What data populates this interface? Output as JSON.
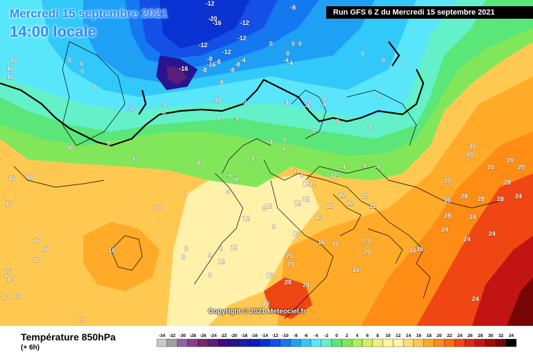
{
  "header": {
    "date_text": "Mercredi 15 septembre 2021",
    "time_text": "14:00 locale",
    "run_text": "Run GFS 6 Z du Mercredi 15 septembre 2021"
  },
  "footer": {
    "variable_title": "Température 850hPa",
    "lead_time": "(+ 6h)",
    "copyright": "Copyright © 2021 Meteociel.fr"
  },
  "legend": {
    "labels": [
      "-34",
      "-32",
      "-30",
      "-28",
      "-26",
      "-24",
      "-22",
      "-20",
      "-18",
      "-16",
      "-14",
      "-12",
      "-10",
      "-8",
      "-6",
      "-4",
      "-2",
      "0",
      "2",
      "4",
      "6",
      "8",
      "10",
      "12",
      "14",
      "16",
      "18",
      "20",
      "22",
      "24",
      "26",
      "28",
      "30",
      "32",
      "34"
    ],
    "colors": [
      "#c8c8c8",
      "#a0a0a0",
      "#8c64a0",
      "#8c3c8c",
      "#78286e",
      "#5a1e78",
      "#3c0a8c",
      "#28148c",
      "#1e1ea0",
      "#0a1eb4",
      "#0a32d2",
      "#1450e6",
      "#1478f0",
      "#1ea0f5",
      "#32c8fa",
      "#5ae6fa",
      "#64f0c8",
      "#5ae678",
      "#82e65a",
      "#aaf05a",
      "#d2f064",
      "#f0f082",
      "#fff596",
      "#fff0aa",
      "#ffdc78",
      "#ffc850",
      "#ffaa28",
      "#ff8c14",
      "#ff6e0a",
      "#f04614",
      "#dc2814",
      "#c31414",
      "#a00a0a",
      "#780505",
      "#000000"
    ]
  },
  "map_labels": [
    {
      "t": "-12"
    },
    {
      "t": "-20"
    },
    {
      "t": "-16"
    },
    {
      "t": "-12"
    },
    {
      "t": "-12"
    },
    {
      "t": "-12"
    },
    {
      "t": "-8"
    },
    {
      "t": "-12"
    },
    {
      "t": "-16"
    },
    {
      "t": "-8"
    },
    {
      "t": "-8"
    },
    {
      "t": "-16"
    },
    {
      "t": "-4"
    },
    {
      "t": "-8"
    },
    {
      "t": "-4"
    },
    {
      "t": "-8"
    },
    {
      "t": "-40"
    },
    {
      "t": "-4"
    },
    {
      "t": "-4"
    },
    {
      "t": "-4"
    },
    {
      "t": "-4"
    },
    {
      "t": "-4"
    },
    {
      "t": "-4"
    },
    {
      "t": "-4"
    },
    {
      "t": "-4"
    },
    {
      "t": "-4"
    },
    {
      "t": "-4"
    },
    {
      "t": "-4"
    },
    {
      "t": "-4"
    },
    {
      "t": "-4"
    },
    {
      "t": "-8"
    },
    {
      "t": "-8"
    },
    {
      "t": "0"
    },
    {
      "t": "0"
    },
    {
      "t": "0"
    },
    {
      "t": "0"
    },
    {
      "t": "0"
    },
    {
      "t": "0"
    },
    {
      "t": "0"
    },
    {
      "t": "0"
    },
    {
      "t": "0"
    },
    {
      "t": "0"
    },
    {
      "t": "0"
    },
    {
      "t": "0"
    },
    {
      "t": "0"
    },
    {
      "t": "0"
    },
    {
      "t": "0"
    },
    {
      "t": "0"
    },
    {
      "t": "0"
    },
    {
      "t": "0"
    },
    {
      "t": "0"
    },
    {
      "t": "4"
    },
    {
      "t": "4"
    },
    {
      "t": "4"
    },
    {
      "t": "4"
    },
    {
      "t": "4"
    },
    {
      "t": "4"
    },
    {
      "t": "4"
    },
    {
      "t": "4"
    },
    {
      "t": "4"
    },
    {
      "t": "4"
    },
    {
      "t": "-4"
    },
    {
      "t": "8"
    },
    {
      "t": "8"
    },
    {
      "t": "8"
    },
    {
      "t": "8"
    },
    {
      "t": "8"
    },
    {
      "t": "8"
    },
    {
      "t": "8"
    },
    {
      "t": "8"
    },
    {
      "t": "8"
    },
    {
      "t": "8"
    },
    {
      "t": "12"
    },
    {
      "t": "12"
    },
    {
      "t": "12"
    },
    {
      "t": "12"
    },
    {
      "t": "12"
    },
    {
      "t": "12"
    },
    {
      "t": "12"
    },
    {
      "t": "12"
    },
    {
      "t": "12"
    },
    {
      "t": "12"
    },
    {
      "t": "12"
    },
    {
      "t": "12"
    },
    {
      "t": "12"
    },
    {
      "t": "12"
    },
    {
      "t": "12"
    },
    {
      "t": "16"
    },
    {
      "t": "16"
    },
    {
      "t": "16"
    },
    {
      "t": "16"
    },
    {
      "t": "16"
    },
    {
      "t": "16"
    },
    {
      "t": "16"
    },
    {
      "t": "16"
    },
    {
      "t": "16"
    },
    {
      "t": "16"
    },
    {
      "t": "16"
    },
    {
      "t": "16"
    },
    {
      "t": "16"
    },
    {
      "t": "16"
    },
    {
      "t": "16"
    },
    {
      "t": "16"
    },
    {
      "t": "16"
    },
    {
      "t": "16"
    },
    {
      "t": "16"
    },
    {
      "t": "16"
    },
    {
      "t": "16"
    },
    {
      "t": "16"
    },
    {
      "t": "16"
    },
    {
      "t": "16"
    },
    {
      "t": "16"
    },
    {
      "t": "20"
    },
    {
      "t": "20"
    },
    {
      "t": "20"
    },
    {
      "t": "20"
    },
    {
      "t": "20"
    },
    {
      "t": "20"
    },
    {
      "t": "20"
    },
    {
      "t": "20"
    },
    {
      "t": "20"
    },
    {
      "t": "20"
    },
    {
      "t": "20"
    },
    {
      "t": "24"
    },
    {
      "t": "24"
    },
    {
      "t": "24"
    },
    {
      "t": "24"
    },
    {
      "t": "24"
    },
    {
      "t": "24"
    },
    {
      "t": "24"
    },
    {
      "t": "28"
    },
    {
      "t": "28"
    },
    {
      "t": "28"
    },
    {
      "t": "28"
    },
    {
      "t": "28"
    }
  ]
}
